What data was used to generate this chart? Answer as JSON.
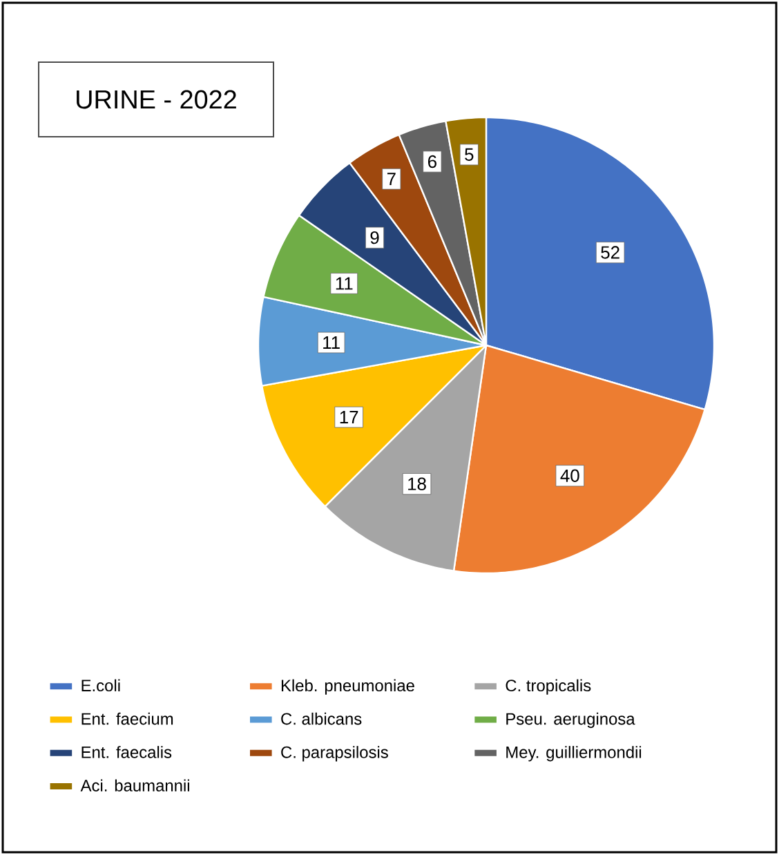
{
  "chart_data": {
    "type": "pie",
    "title": "URINE - 2022",
    "categories": [
      "E.coli",
      "Kleb. pneumoniae",
      "C. tropicalis",
      "Ent. faecium",
      "C. albicans",
      "Pseu. aeruginosa",
      "Ent. faecalis",
      "C. parapsilosis",
      "Mey. guilliermondii",
      "Aci. baumannii"
    ],
    "values": [
      52,
      40,
      18,
      17,
      11,
      11,
      9,
      7,
      6,
      5
    ],
    "colors": [
      "#4472c4",
      "#ed7d31",
      "#a5a5a5",
      "#ffc000",
      "#5b9bd5",
      "#70ad47",
      "#264478",
      "#9e480e",
      "#636363",
      "#997300"
    ],
    "data_labels": true,
    "legend": "bottom"
  }
}
